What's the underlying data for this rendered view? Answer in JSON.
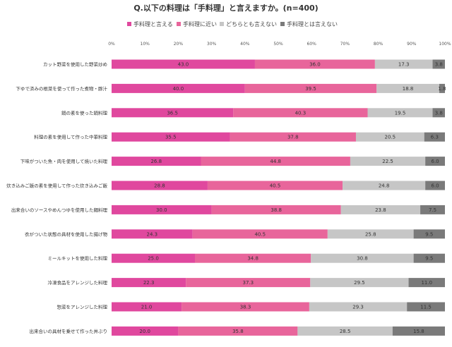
{
  "chart_data": {
    "type": "bar",
    "orientation": "horizontal",
    "stacked": true,
    "title": "Q.以下の料理は「手料理」と言えますか。(n=400)",
    "xlabel": "",
    "ylabel": "",
    "xlim": [
      0,
      100
    ],
    "xticks": [
      "0%",
      "10%",
      "20%",
      "30%",
      "40%",
      "50%",
      "60%",
      "70%",
      "80%",
      "90%",
      "100%"
    ],
    "legend_position": "top",
    "grid": false,
    "categories": [
      "カット野菜を使用した野菜炒め",
      "下ゆで済みの根菜を使って作った煮物・豚汁",
      "鍋の素を使った鍋料理",
      "料理の素を使用して作った中華料理",
      "下味がついた魚・肉を使用して焼いた料理",
      "炊き込みご飯の素を使用して作った炊き込みご飯",
      "出来合いのソースやめんつゆを使用した麺料理",
      "衣がついた状態の具材を使用した揚げ物",
      "ミールキットを使用した料理",
      "冷凍食品をアレンジした料理",
      "惣菜をアレンジした料理",
      "出来合いの具材を乗せて作った丼ぶり"
    ],
    "series": [
      {
        "name": "手料理と言える",
        "color": "#e0489e",
        "values": [
          43.0,
          40.0,
          36.5,
          35.5,
          26.8,
          28.8,
          30.0,
          24.3,
          25.0,
          22.3,
          21.0,
          20.0
        ]
      },
      {
        "name": "手料理に近い",
        "color": "#e8659b",
        "values": [
          36.0,
          39.5,
          40.3,
          37.8,
          44.8,
          40.5,
          38.8,
          40.5,
          34.8,
          37.3,
          38.3,
          35.8
        ]
      },
      {
        "name": "どちらとも言えない",
        "color": "#c6c6c6",
        "values": [
          17.3,
          18.8,
          19.5,
          20.5,
          22.5,
          24.8,
          23.8,
          25.8,
          30.8,
          29.5,
          29.3,
          28.5
        ]
      },
      {
        "name": "手料理とは言えない",
        "color": "#7a7a7a",
        "values": [
          3.8,
          1.8,
          3.8,
          6.3,
          6.0,
          6.0,
          7.5,
          9.5,
          9.5,
          11.0,
          11.5,
          15.8
        ]
      }
    ]
  }
}
